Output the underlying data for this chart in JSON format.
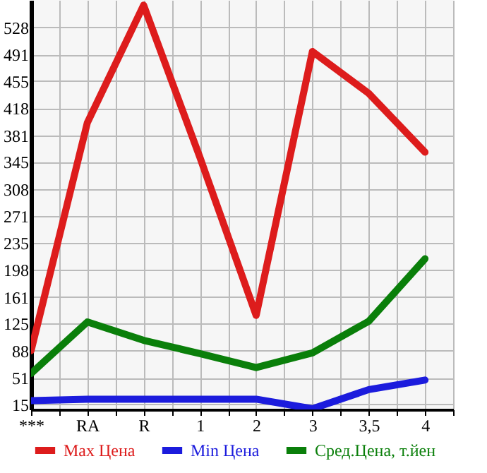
{
  "chart_data": {
    "type": "line",
    "categories": [
      "***",
      "RA",
      "R",
      "1",
      "2",
      "3",
      "3,5",
      "4"
    ],
    "series": [
      {
        "name": "Max Цена",
        "color": "#dd1c1c",
        "values": [
          88,
          398,
          558,
          351,
          136,
          495,
          438,
          358
        ]
      },
      {
        "name": "Min Цена",
        "color": "#1c1cdd",
        "values": [
          20,
          22,
          22,
          22,
          22,
          9,
          35,
          48
        ]
      },
      {
        "name": "Сред.Цена, т.йен",
        "color": "#0a7f0a",
        "values": [
          57,
          127,
          102,
          84,
          65,
          85,
          128,
          213
        ]
      }
    ],
    "ylim": [
      8,
      565
    ],
    "yticks": [
      15,
      51,
      88,
      125,
      161,
      198,
      235,
      271,
      308,
      345,
      381,
      418,
      455,
      491,
      528
    ],
    "grid": true,
    "legend": "bottom",
    "line_style": "solid"
  }
}
